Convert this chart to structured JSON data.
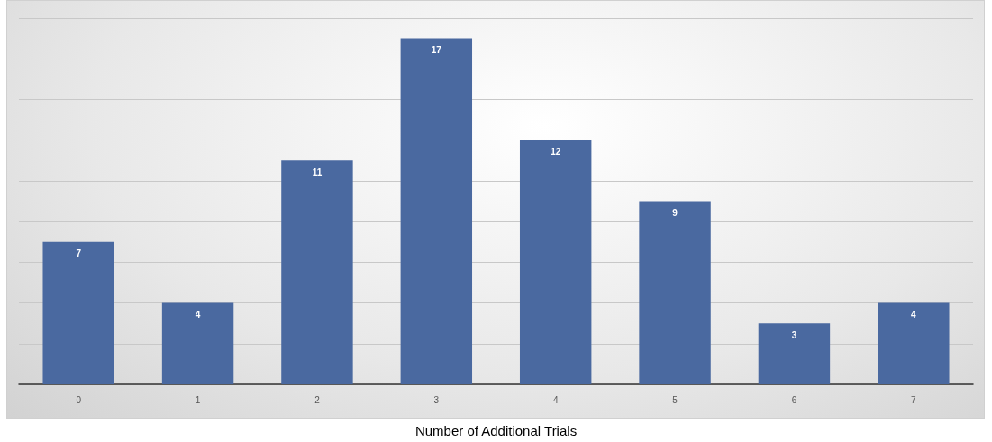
{
  "chart_data": {
    "type": "bar",
    "xlabel": "Number of Additional Trials",
    "categories": [
      "0",
      "1",
      "2",
      "3",
      "4",
      "5",
      "6",
      "7"
    ],
    "values": [
      7,
      4,
      11,
      17,
      12,
      9,
      3,
      4
    ],
    "color": "#4a69a0",
    "data_labels": true,
    "ylim": [
      0,
      18
    ],
    "yticks": [
      {
        "value": 0,
        "label": null
      },
      {
        "value": 2,
        "label": null
      },
      {
        "value": 4,
        "label": null
      },
      {
        "value": 6,
        "label": null
      },
      {
        "value": 8,
        "label": null
      },
      {
        "value": 10,
        "label": null
      },
      {
        "value": 12,
        "label": null
      },
      {
        "value": 14,
        "label": null
      },
      {
        "value": 16,
        "label": null
      },
      {
        "value": 18,
        "label": null
      }
    ],
    "tick_labels": "x",
    "grid": "y"
  }
}
